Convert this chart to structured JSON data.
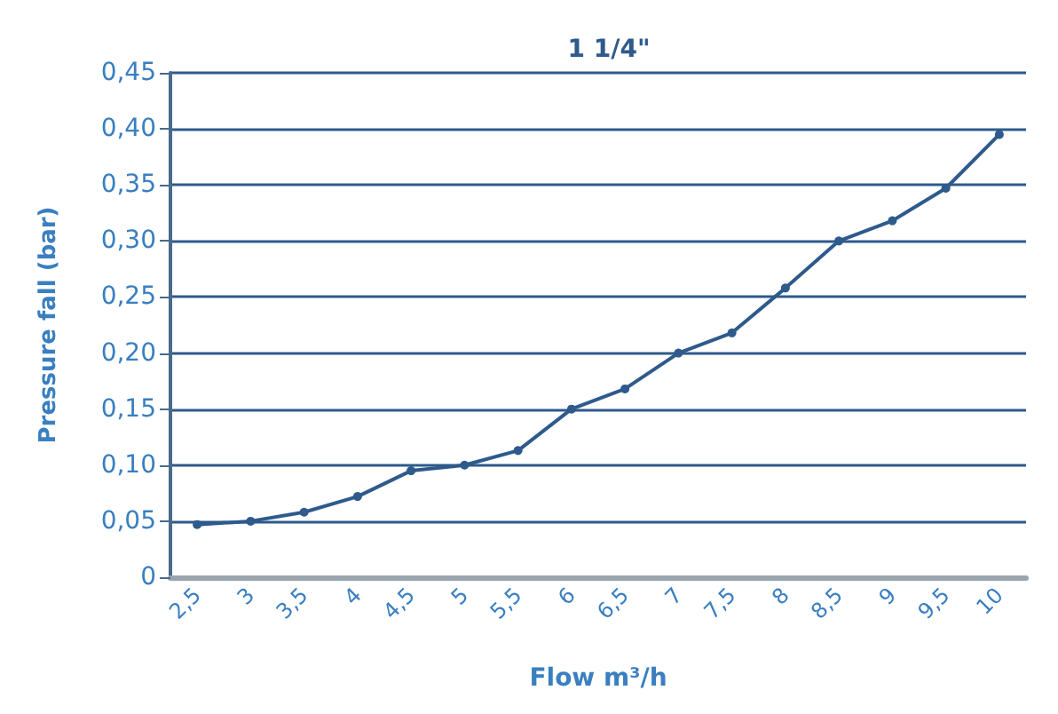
{
  "chart_data": {
    "type": "line",
    "title": "1 1/4\"",
    "xlabel": "Flow m³/h",
    "ylabel": "Pressure fall (bar)",
    "categories": [
      "2,5",
      "3",
      "3,5",
      "4",
      "4,5",
      "5",
      "5,5",
      "6",
      "6,5",
      "7",
      "7,5",
      "8",
      "8,5",
      "9",
      "9,5",
      "10"
    ],
    "series": [
      {
        "color": "#2e5a8c",
        "values": [
          0.047,
          0.05,
          0.058,
          0.072,
          0.095,
          0.1,
          0.113,
          0.15,
          0.168,
          0.2,
          0.218,
          0.258,
          0.3,
          0.318,
          0.347,
          0.395
        ]
      }
    ],
    "ylim": [
      0,
      0.45
    ],
    "yticks": [
      0,
      {
        "value": 0.05,
        "label": "0,05"
      },
      {
        "value": 0.1,
        "label": "0,10"
      },
      {
        "value": 0.15,
        "label": "0,15"
      },
      {
        "value": 0.2,
        "label": "0,20"
      },
      {
        "value": 0.25,
        "label": "0,25"
      },
      {
        "value": 0.3,
        "label": "0,30"
      },
      {
        "value": 0.35,
        "label": "0,35"
      },
      {
        "value": 0.4,
        "label": "0,40"
      },
      {
        "value": 0.45,
        "label": "0,45"
      }
    ],
    "grid": "y",
    "marker": "circle",
    "line_style": "solid"
  }
}
